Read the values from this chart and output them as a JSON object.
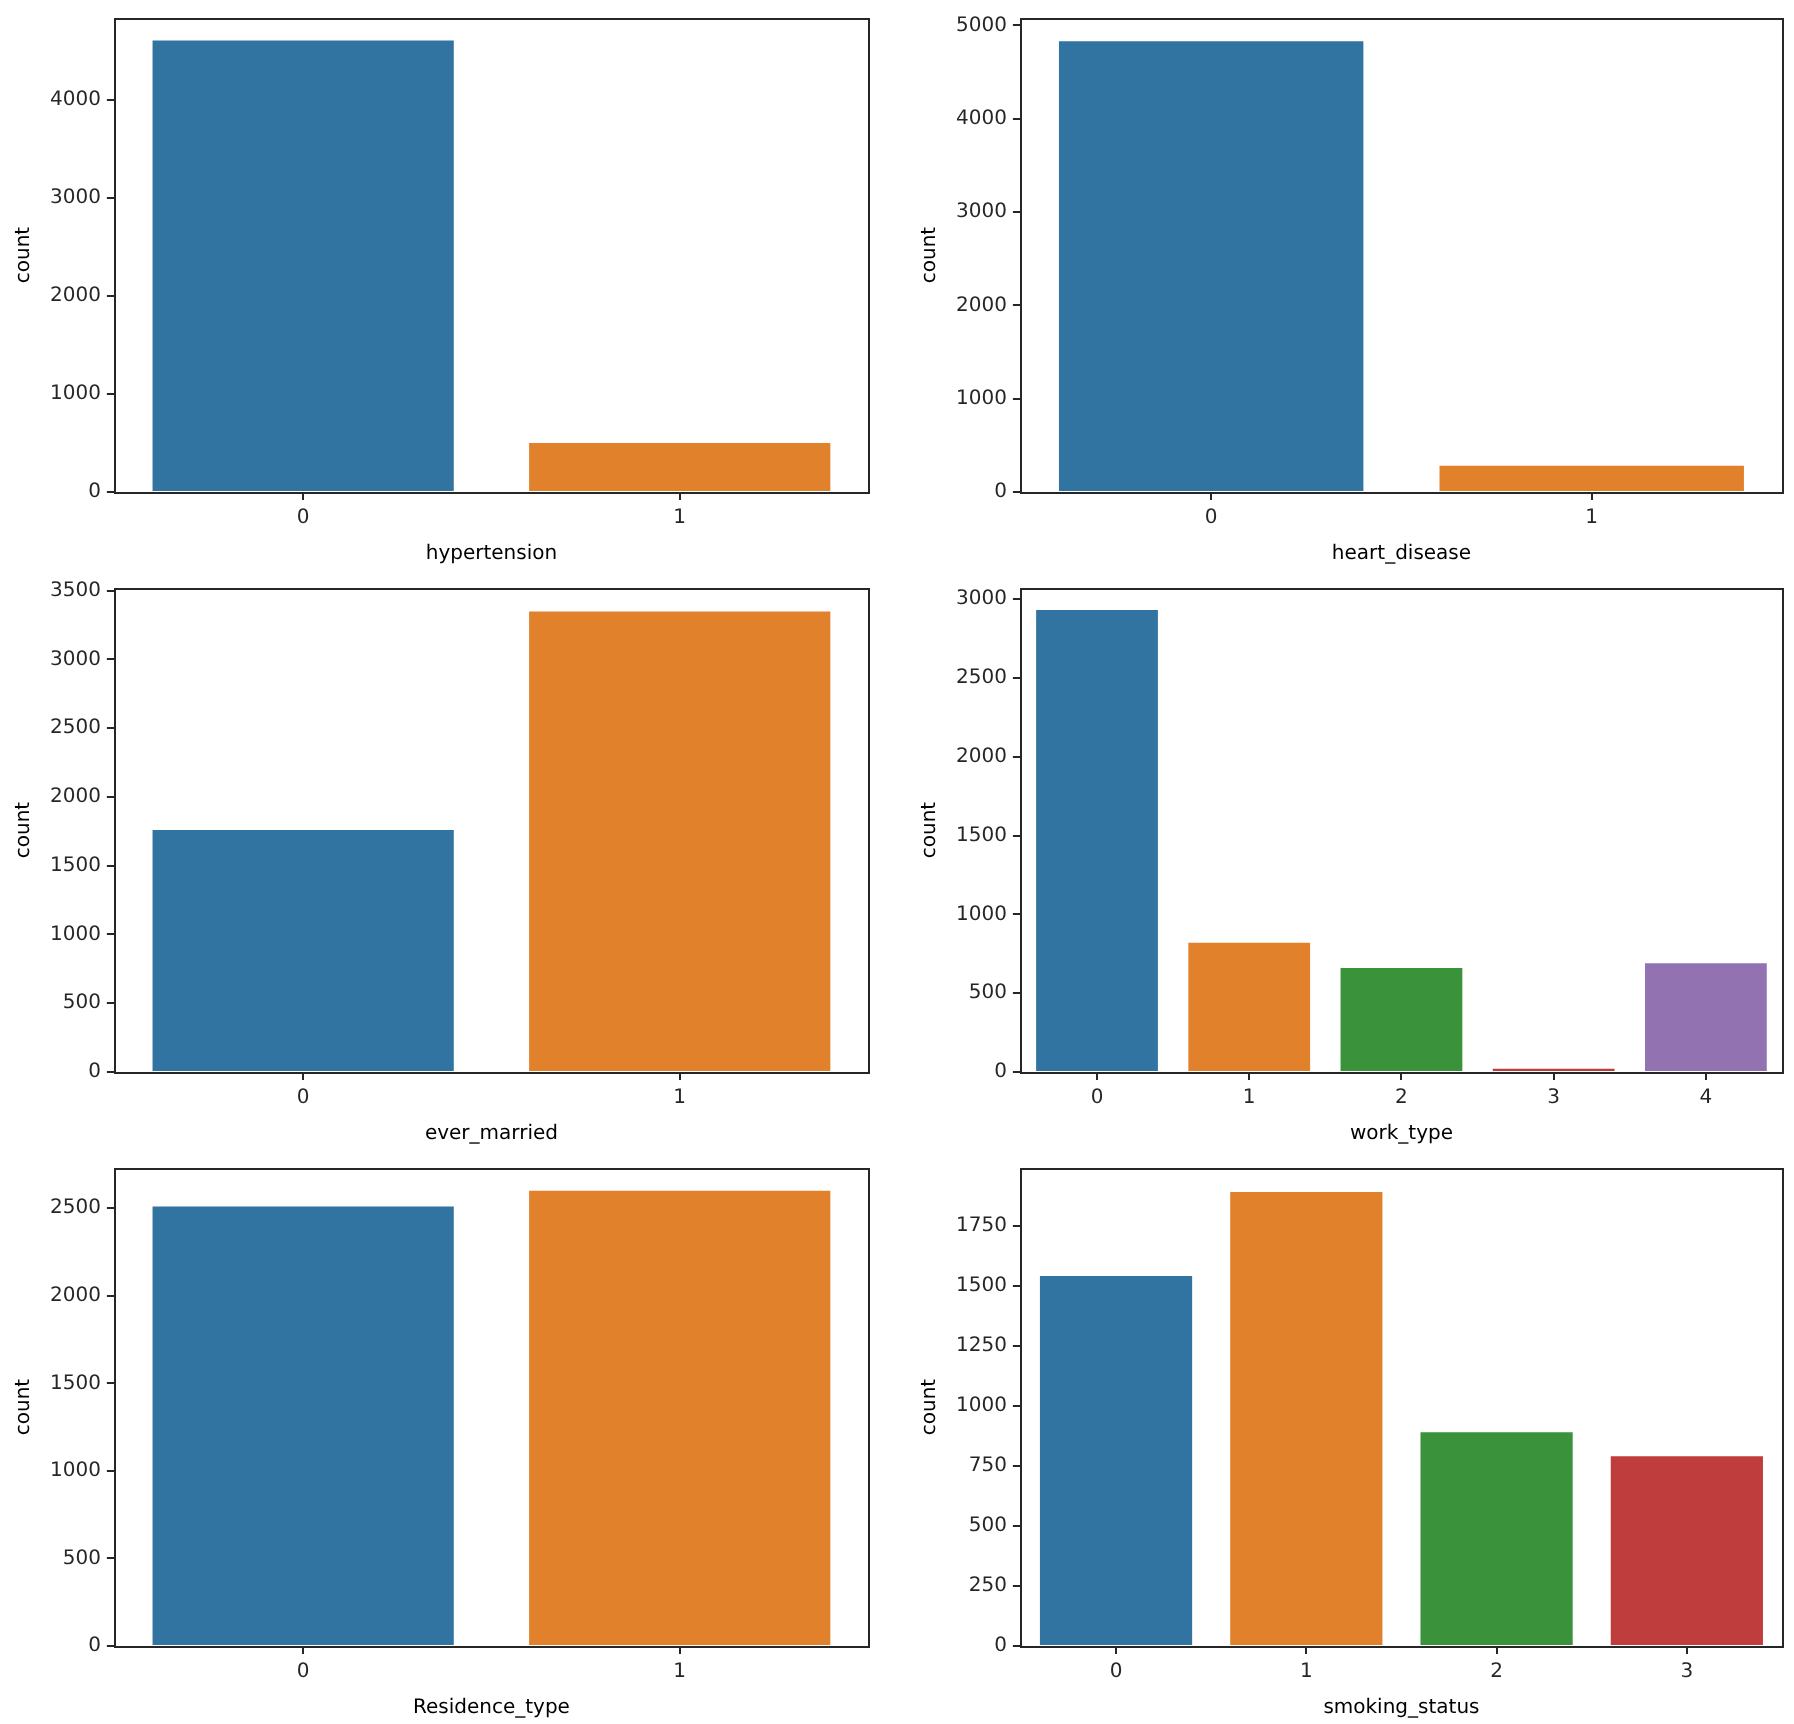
{
  "chart_data": [
    {
      "type": "bar",
      "xlabel": "hypertension",
      "ylabel": "count",
      "categories": [
        "0",
        "1"
      ],
      "values": [
        4610,
        500
      ],
      "colors": [
        "#3274a1",
        "#e1812c"
      ],
      "ylim": [
        0,
        4840
      ],
      "yticks": [
        0,
        1000,
        2000,
        3000,
        4000
      ]
    },
    {
      "type": "bar",
      "xlabel": "heart_disease",
      "ylabel": "count",
      "categories": [
        "0",
        "1"
      ],
      "values": [
        4830,
        280
      ],
      "colors": [
        "#3274a1",
        "#e1812c"
      ],
      "ylim": [
        0,
        5080
      ],
      "yticks": [
        0,
        1000,
        2000,
        3000,
        4000,
        5000
      ]
    },
    {
      "type": "bar",
      "xlabel": "ever_married",
      "ylabel": "count",
      "categories": [
        "0",
        "1"
      ],
      "values": [
        1760,
        3350
      ],
      "colors": [
        "#3274a1",
        "#e1812c"
      ],
      "ylim": [
        0,
        3520
      ],
      "yticks": [
        0,
        500,
        1000,
        1500,
        2000,
        2500,
        3000,
        3500
      ]
    },
    {
      "type": "bar",
      "xlabel": "work_type",
      "ylabel": "count",
      "categories": [
        "0",
        "1",
        "2",
        "3",
        "4"
      ],
      "values": [
        2930,
        820,
        660,
        20,
        690
      ],
      "colors": [
        "#3274a1",
        "#e1812c",
        "#3a923a",
        "#c03d3e",
        "#9372b2"
      ],
      "ylim": [
        0,
        3070
      ],
      "yticks": [
        0,
        500,
        1000,
        1500,
        2000,
        2500,
        3000
      ]
    },
    {
      "type": "bar",
      "xlabel": "Residence_type",
      "ylabel": "count",
      "categories": [
        "0",
        "1"
      ],
      "values": [
        2510,
        2600
      ],
      "colors": [
        "#3274a1",
        "#e1812c"
      ],
      "ylim": [
        0,
        2730
      ],
      "yticks": [
        0,
        500,
        1000,
        1500,
        2000,
        2500
      ]
    },
    {
      "type": "bar",
      "xlabel": "smoking_status",
      "ylabel": "count",
      "categories": [
        "0",
        "1",
        "2",
        "3"
      ],
      "values": [
        1540,
        1890,
        890,
        790
      ],
      "colors": [
        "#3274a1",
        "#e1812c",
        "#3a923a",
        "#c03d3e"
      ],
      "ylim": [
        0,
        1990
      ],
      "yticks": [
        0,
        250,
        500,
        750,
        1000,
        1250,
        1500,
        1750
      ]
    }
  ]
}
